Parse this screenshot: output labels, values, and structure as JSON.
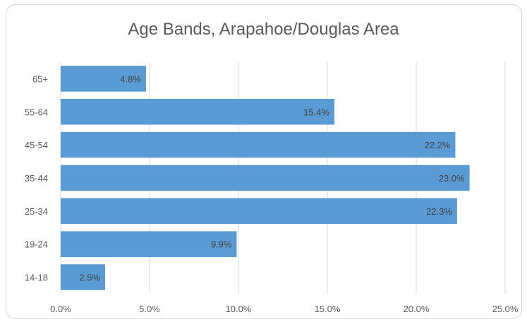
{
  "chart_data": {
    "type": "bar",
    "orientation": "horizontal",
    "title": "Age Bands, Arapahoe/Douglas Area",
    "categories": [
      "65+",
      "55-64",
      "45-54",
      "35-44",
      "25-34",
      "19-24",
      "14-18"
    ],
    "values": [
      4.8,
      15.4,
      22.2,
      23.0,
      22.3,
      9.9,
      2.5
    ],
    "data_labels": [
      "4.8%",
      "15.4%",
      "22.2%",
      "23.0%",
      "22.3%",
      "9.9%",
      "2.5%"
    ],
    "x_ticks": [
      "0.0%",
      "5.0%",
      "10.0%",
      "15.0%",
      "20.0%",
      "25.0%"
    ],
    "xlim": [
      0,
      25
    ],
    "xlabel": "",
    "ylabel": "",
    "grid": true,
    "legend": "none",
    "colors": {
      "bar": "#5b9bd5",
      "grid": "#d9d9d9",
      "text": "#595959"
    }
  }
}
